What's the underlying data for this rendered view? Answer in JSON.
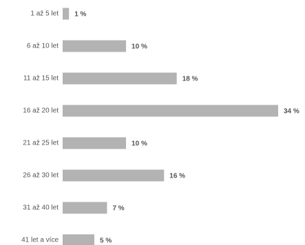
{
  "chart_data": {
    "type": "bar",
    "orientation": "horizontal",
    "title": "",
    "xlabel": "",
    "ylabel": "",
    "categories": [
      "1 až 5 let",
      "6 až 10 let",
      "11 až 15 let",
      "16 až 20 let",
      "21 až 25 let",
      "26 až 30 let",
      "31 až 40 let",
      "41 let a více"
    ],
    "values": [
      1,
      10,
      18,
      34,
      10,
      16,
      7,
      5
    ],
    "value_labels": [
      "1 %",
      "10 %",
      "18 %",
      "34 %",
      "10 %",
      "16 %",
      "7 %",
      "5 %"
    ],
    "unit": "%",
    "xlim": [
      0,
      34
    ],
    "grid": false,
    "legend": "none",
    "bar_color": "#b3b3b3",
    "label_color": "#555555",
    "value_label_color": "#555555"
  }
}
